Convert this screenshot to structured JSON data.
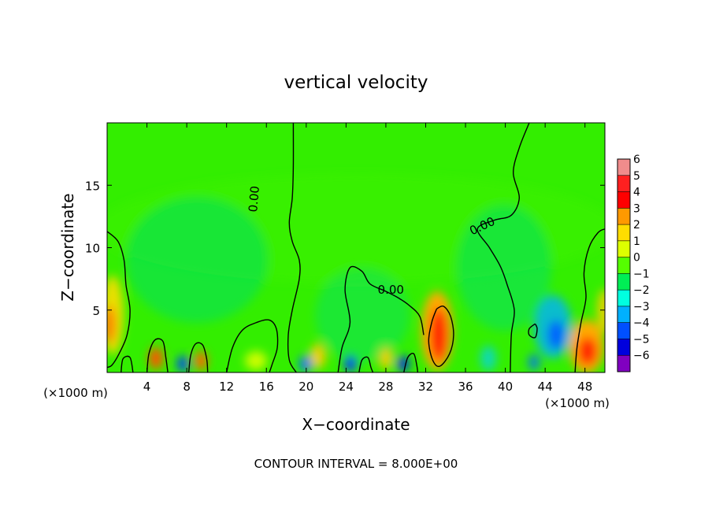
{
  "chart_data": {
    "type": "heatmap",
    "title": "vertical velocity",
    "xlabel": "X−coordinate",
    "ylabel": "Z−coordinate",
    "x_unit_left": "(×1000 m)",
    "x_unit_right": "(×1000 m)",
    "xlim": [
      0,
      50
    ],
    "ylim": [
      0,
      20
    ],
    "xticks": [
      4,
      8,
      12,
      16,
      20,
      24,
      28,
      32,
      36,
      40,
      44,
      48
    ],
    "yticks": [
      5,
      10,
      15
    ],
    "colorbar": {
      "levels": [
        6,
        5,
        4,
        3,
        2,
        1,
        0,
        -1,
        -2,
        -3,
        -4,
        -5,
        -6
      ],
      "labels": [
        "6",
        "5",
        "4",
        "3",
        "2",
        "1",
        "0",
        "−1",
        "−2",
        "−3",
        "−4",
        "−5",
        "−6"
      ],
      "colors": [
        "#f08c8c",
        "#ff2020",
        "#ff0000",
        "#ff9900",
        "#ffdd00",
        "#ddff00",
        "#55ff00",
        "#00ee55",
        "#00ffe0",
        "#00b0ff",
        "#0050ff",
        "#0000dd",
        "#8000c0"
      ]
    },
    "contour_labels": [
      {
        "text": "0.00",
        "x": 14.8,
        "y": 13.9,
        "angle": -85
      },
      {
        "text": "0.00",
        "x": 37.7,
        "y": 11.7,
        "angle": -25
      },
      {
        "text": "0.00",
        "x": 28.5,
        "y": 6.6,
        "angle": 0
      }
    ],
    "contour_lines": [
      [
        [
          19,
          0
        ],
        [
          18.3,
          1
        ],
        [
          18.2,
          3
        ],
        [
          18.6,
          5
        ],
        [
          19.3,
          7.5
        ],
        [
          19.3,
          9
        ],
        [
          18.6,
          10.5
        ],
        [
          18.3,
          12
        ],
        [
          18.6,
          14
        ],
        [
          18.7,
          16.5
        ],
        [
          18.7,
          20
        ]
      ],
      [
        [
          40.5,
          0
        ],
        [
          40.6,
          3
        ],
        [
          40.9,
          5
        ],
        [
          40.2,
          7
        ],
        [
          39.5,
          8.5
        ],
        [
          38.4,
          10
        ],
        [
          37.2,
          11.5
        ],
        [
          38.9,
          12.2
        ],
        [
          40.6,
          12.6
        ],
        [
          41.4,
          14
        ],
        [
          40.8,
          16
        ],
        [
          41.4,
          18
        ],
        [
          42.4,
          20
        ]
      ],
      [
        [
          23.2,
          0
        ],
        [
          23.6,
          2
        ],
        [
          24.4,
          4
        ],
        [
          23.9,
          6.6
        ],
        [
          24.4,
          8.4
        ],
        [
          25.6,
          8.1
        ],
        [
          26.4,
          7.1
        ],
        [
          28,
          6.5
        ],
        [
          29.2,
          6
        ],
        [
          30.3,
          5.4
        ],
        [
          31.4,
          4.5
        ],
        [
          31.8,
          3
        ]
      ],
      [
        [
          0,
          11.3
        ],
        [
          1.1,
          10.5
        ],
        [
          1.7,
          9
        ],
        [
          1.9,
          7
        ],
        [
          2.3,
          5
        ],
        [
          2,
          3
        ],
        [
          1.2,
          1.5
        ],
        [
          0.5,
          0.6
        ],
        [
          0,
          0.4
        ]
      ],
      [
        [
          47,
          0
        ],
        [
          47.2,
          2
        ],
        [
          47.6,
          4
        ],
        [
          48.1,
          6
        ],
        [
          47.9,
          8
        ],
        [
          48.4,
          10
        ],
        [
          49.3,
          11.2
        ],
        [
          50,
          11.5
        ]
      ],
      [
        [
          33.1,
          5.1
        ],
        [
          32.6,
          4
        ],
        [
          32.3,
          2.5
        ],
        [
          32.7,
          1
        ],
        [
          33.4,
          0.5
        ],
        [
          34.4,
          1.5
        ],
        [
          34.8,
          3
        ],
        [
          34.5,
          4.5
        ],
        [
          33.8,
          5.3
        ],
        [
          33.1,
          5.1
        ]
      ],
      [
        [
          12,
          0
        ],
        [
          12.6,
          2
        ],
        [
          13.6,
          3.4
        ],
        [
          15,
          4
        ],
        [
          16.3,
          4.2
        ],
        [
          17,
          3.5
        ],
        [
          17.1,
          2
        ],
        [
          16.6,
          0.7
        ],
        [
          16.3,
          0
        ]
      ],
      [
        [
          4,
          0
        ],
        [
          4.2,
          1.5
        ],
        [
          4.8,
          2.6
        ],
        [
          5.6,
          2.5
        ],
        [
          5.9,
          1.2
        ],
        [
          6.1,
          0
        ]
      ],
      [
        [
          8.2,
          0
        ],
        [
          8.4,
          1.4
        ],
        [
          8.9,
          2.3
        ],
        [
          9.6,
          2.2
        ],
        [
          10,
          1.1
        ],
        [
          10.1,
          0
        ]
      ],
      [
        [
          43,
          3.9
        ],
        [
          42.4,
          3.5
        ],
        [
          42.4,
          3
        ],
        [
          43,
          2.8
        ],
        [
          43.2,
          3.5
        ],
        [
          43,
          3.9
        ]
      ],
      [
        [
          25.3,
          0
        ],
        [
          25.6,
          1
        ],
        [
          26.2,
          1.2
        ],
        [
          26.5,
          0.4
        ],
        [
          26.7,
          0
        ]
      ],
      [
        [
          29.8,
          0
        ],
        [
          30.2,
          1.2
        ],
        [
          30.8,
          1.5
        ],
        [
          31.1,
          0.6
        ],
        [
          31.2,
          0
        ]
      ],
      [
        [
          1.4,
          0
        ],
        [
          1.6,
          1.1
        ],
        [
          2.3,
          1.2
        ],
        [
          2.6,
          0
        ]
      ]
    ]
  }
}
